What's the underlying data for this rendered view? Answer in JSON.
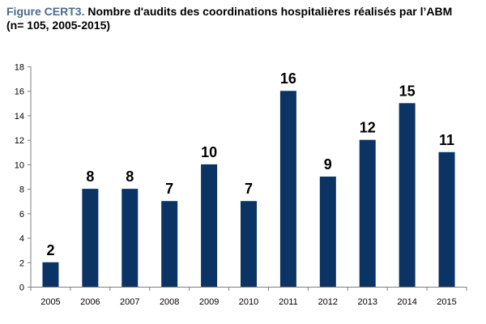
{
  "figure": {
    "label": "Figure CERT3.",
    "title": "Nombre d'audits des coordinations hospitalières réalisés par l’ABM",
    "subtitle": "(n= 105, 2005-2015)"
  },
  "colors": {
    "bar": "#0b3363",
    "axis": "#7f7f7f",
    "label": "#000000",
    "figure_label": "#4a6a8a"
  },
  "chart_data": {
    "type": "bar",
    "title": "Nombre d'audits des coordinations hospitalières réalisés par l’ABM",
    "categories": [
      "2005",
      "2006",
      "2007",
      "2008",
      "2009",
      "2010",
      "2011",
      "2012",
      "2013",
      "2014",
      "2015"
    ],
    "values": [
      2,
      8,
      8,
      7,
      10,
      7,
      16,
      9,
      12,
      15,
      11
    ],
    "data_labels": true,
    "xlabel": "",
    "ylabel": "",
    "ylim": [
      0,
      18
    ],
    "yticks": [
      0,
      2,
      4,
      6,
      8,
      10,
      12,
      14,
      16,
      18
    ],
    "grid": false,
    "legend": "none"
  }
}
